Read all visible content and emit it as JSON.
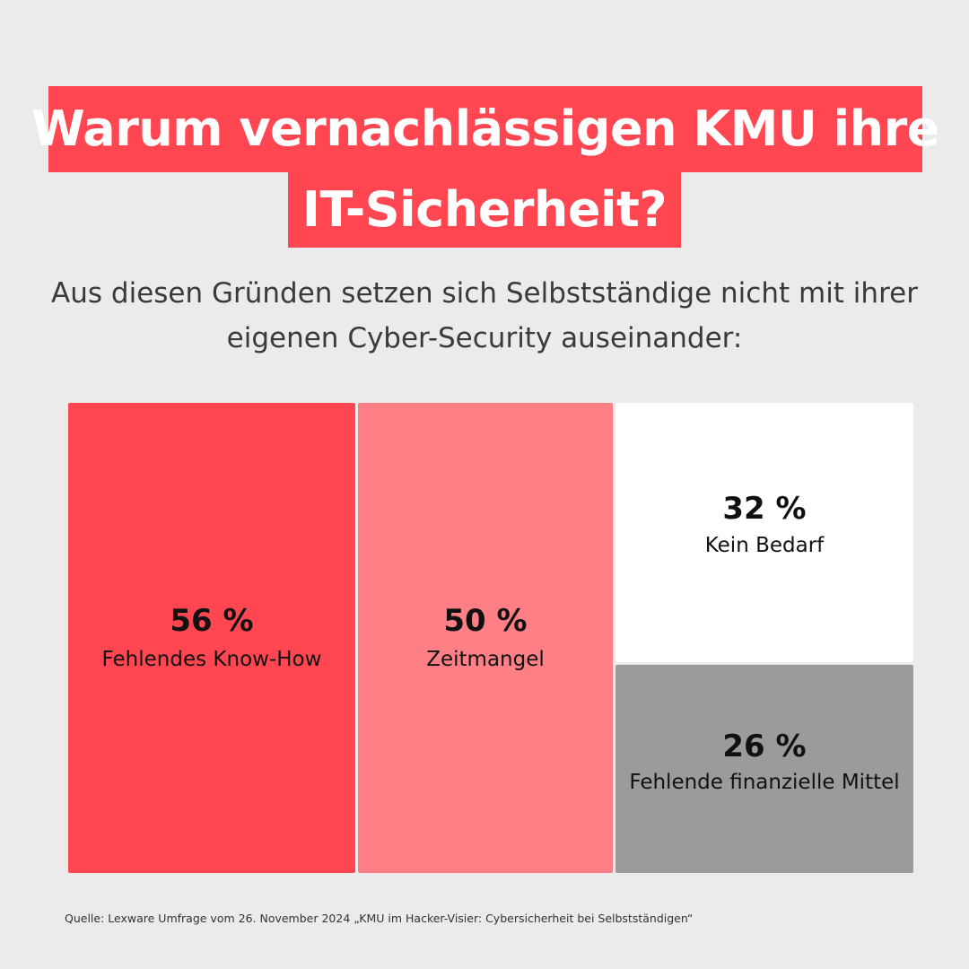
{
  "title": {
    "line1": "Warum vernachlässigen KMU ihre",
    "line2": "IT-Sicherheit?"
  },
  "subtitle": {
    "line1": "Aus diesen Gründen setzen sich Selbstständige nicht mit ihrer",
    "line2": "eigenen Cyber-Security auseinander:"
  },
  "colors": {
    "background": "#ebebeb",
    "accent": "#ff4651"
  },
  "chart_data": {
    "type": "treemap",
    "unit": "%",
    "items": [
      {
        "value_text": "56 %",
        "value": 56,
        "label": "Fehlendes Know-How",
        "color": "#ff4651"
      },
      {
        "value_text": "50 %",
        "value": 50,
        "label": "Zeitmangel",
        "color": "#ff7f87"
      },
      {
        "value_text": "32 %",
        "value": 32,
        "label": "Kein Bedarf",
        "color": "#ffffff"
      },
      {
        "value_text": "26 %",
        "value": 26,
        "label": "Fehlende finanzielle Mittel",
        "color": "#9b9b9b"
      }
    ]
  },
  "source": "Quelle: Lexware Umfrage vom 26. November 2024 „KMU im Hacker-Visier: Cybersicherheit bei Selbstständigen“"
}
